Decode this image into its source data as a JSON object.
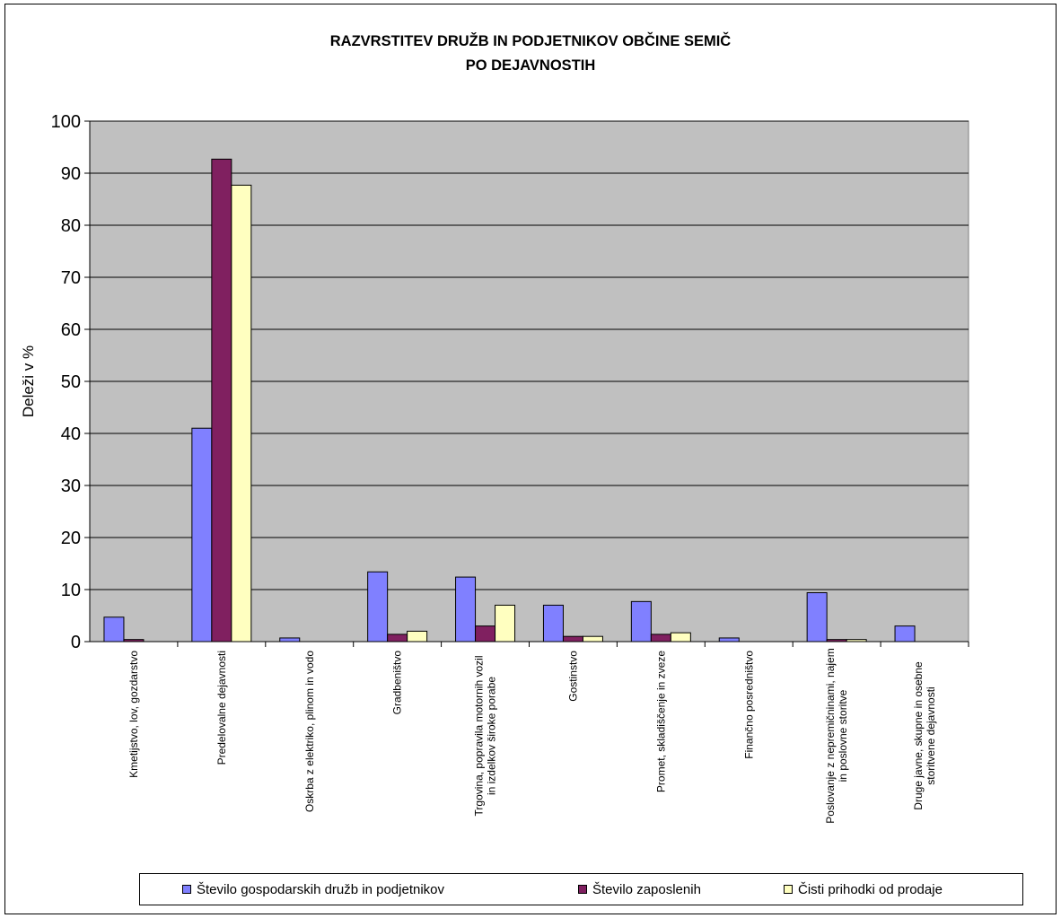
{
  "chart_data": {
    "type": "bar",
    "title": "RAZVRSTITEV DRUŽB IN PODJETNIKOV OBČINE SEMIČ",
    "subtitle": "PO DEJAVNOSTIH",
    "xlabel": "",
    "ylabel": "Deleži v %",
    "ylim": [
      0,
      100
    ],
    "yticks": [
      0,
      10,
      20,
      30,
      40,
      50,
      60,
      70,
      80,
      90,
      100
    ],
    "grid": true,
    "legend_position": "bottom",
    "categories": [
      "Kmetijstvo, lov, gozdarstvo",
      "Predelovalne dejavnosti",
      "Oskrba z elektriko, plinom in vodo",
      "Gradbeništvo",
      "Trgovina, popravila motornih vozil in izdelkov široke porabe",
      "Gostinstvo",
      "Promet, skladiščenje in zveze",
      "Finančno posredništvo",
      "Poslovanje z nepremičninami, najem in poslovne storitve",
      "Druge javne, skupne in osebne storitvene dejavnosti"
    ],
    "series": [
      {
        "name": "Število gospodarskih družb in podjetnikov",
        "color": "#8080ff",
        "values": [
          4.7,
          41.0,
          0.7,
          13.4,
          12.4,
          7.0,
          7.7,
          0.7,
          9.4,
          3.0
        ]
      },
      {
        "name": "Število zaposlenih",
        "color": "#802060",
        "values": [
          0.4,
          92.7,
          0,
          1.4,
          3.0,
          1.0,
          1.4,
          0,
          0.4,
          0
        ]
      },
      {
        "name": "Čisti prihodki od prodaje",
        "color": "#ffffc0",
        "values": [
          0,
          87.7,
          0,
          2.0,
          7.0,
          1.0,
          1.7,
          0,
          0.4,
          0
        ]
      }
    ],
    "plot_background": "#c0c0c0"
  },
  "legend_labels": {
    "s1": "Število gospodarskih družb in podjetnikov",
    "s2": "Število zaposlenih",
    "s3": "Čisti prihodki od prodaje"
  }
}
